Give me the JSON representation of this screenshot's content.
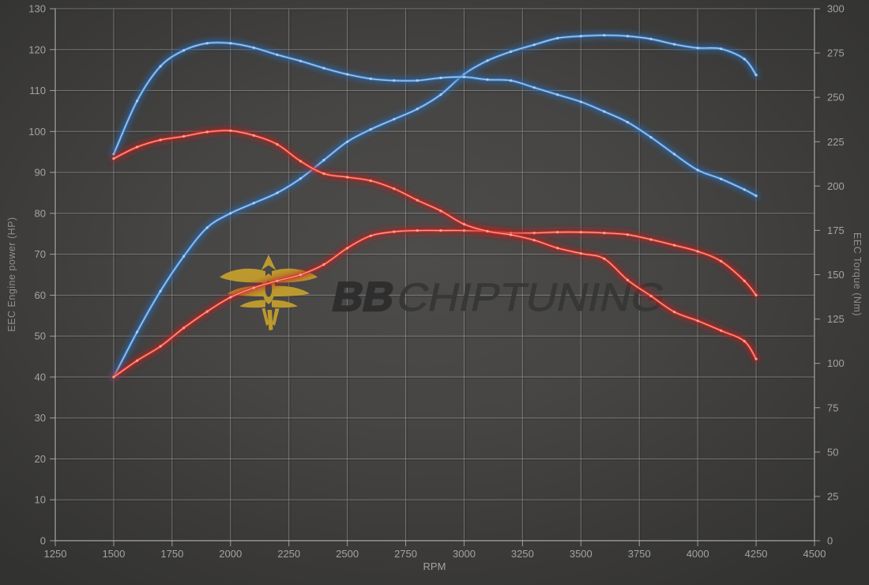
{
  "watermark": {
    "brand_bold": "BB",
    "brand_rest": "CHIPTUNING",
    "emblem": "phoenix-wings-emblem",
    "emblem_color": "#c19d2f",
    "brand_bold_color": "#2d2d2d",
    "brand_rest_color": "#373737"
  },
  "axes": {
    "x": {
      "label": "RPM",
      "min": 1250,
      "max": 4500,
      "tick_step": 250,
      "ticks": [
        1250,
        1500,
        1750,
        2000,
        2250,
        2500,
        2750,
        3000,
        3250,
        3500,
        3750,
        4000,
        4250,
        4500
      ]
    },
    "y_left": {
      "label": "EEC Engine power (HP)",
      "min": 0,
      "max": 130,
      "tick_step": 10,
      "ticks": [
        0,
        10,
        20,
        30,
        40,
        50,
        60,
        70,
        80,
        90,
        100,
        110,
        120,
        130
      ]
    },
    "y_right": {
      "label": "EEC Torque (Nm)",
      "min": 0,
      "max": 300,
      "tick_step": 25,
      "ticks": [
        0,
        25,
        50,
        75,
        100,
        125,
        150,
        175,
        200,
        225,
        250,
        275,
        300
      ]
    }
  },
  "chart_data": {
    "type": "line",
    "title": "",
    "xlabel": "RPM",
    "ylabel_left": "EEC Engine power (HP)",
    "ylabel_right": "EEC Torque (Nm)",
    "x_range": [
      1250,
      4500
    ],
    "y_left_range": [
      0,
      130
    ],
    "y_right_range": [
      0,
      300
    ],
    "grid": true,
    "legend": false,
    "x": [
      1500,
      1600,
      1700,
      1800,
      1900,
      2000,
      2100,
      2200,
      2300,
      2400,
      2500,
      2600,
      2700,
      2800,
      2900,
      3000,
      3100,
      3200,
      3300,
      3400,
      3500,
      3600,
      3700,
      3800,
      3900,
      4000,
      4100,
      4200,
      4250
    ],
    "series": [
      {
        "name": "blue-power-hp",
        "axis": "left",
        "unit": "HP",
        "color_glow": "#2a66ad",
        "color_mid": "#3f80c6",
        "color_core": "#b5d4f1",
        "values": [
          40,
          51,
          61,
          69.5,
          76.5,
          80,
          82.5,
          85,
          88.5,
          93,
          97.5,
          100.5,
          103,
          105.5,
          109,
          114,
          117.3,
          119.5,
          121.2,
          122.8,
          123.3,
          123.5,
          123.3,
          122.6,
          121.3,
          120.4,
          120.2,
          117.7,
          113.8
        ]
      },
      {
        "name": "blue-torque-nm",
        "axis": "right",
        "unit": "Nm",
        "color_glow": "#2a66ad",
        "color_mid": "#3f80c6",
        "color_core": "#b5d4f1",
        "values": [
          218,
          248,
          267.5,
          276.5,
          280.5,
          280.5,
          278,
          274,
          270.5,
          266.5,
          263,
          260.5,
          259.5,
          259.5,
          261,
          261.5,
          260,
          259.5,
          255.5,
          251.5,
          247.5,
          242,
          236,
          227.5,
          218,
          209,
          204,
          198,
          194.5
        ]
      },
      {
        "name": "red-power-hp",
        "axis": "left",
        "unit": "HP",
        "color_glow": "#b11d1d",
        "color_mid": "#d92f2a",
        "color_core": "#ffab95",
        "values": [
          40,
          44,
          47.5,
          52,
          56,
          59.5,
          61.8,
          63.5,
          65,
          67.5,
          71.5,
          74.5,
          75.5,
          75.8,
          75.8,
          75.8,
          75.6,
          75.2,
          75.2,
          75.4,
          75.4,
          75.2,
          74.8,
          73.6,
          72.2,
          70.7,
          68.3,
          63.5,
          60
        ]
      },
      {
        "name": "red-torque-nm",
        "axis": "right",
        "unit": "Nm",
        "color_glow": "#b11d1d",
        "color_mid": "#d92f2a",
        "color_core": "#ffab95",
        "values": [
          215.5,
          222,
          226,
          228,
          230.5,
          231.2,
          228.5,
          223.5,
          214,
          207,
          205,
          203,
          198.5,
          192,
          186,
          178.5,
          174.5,
          172.5,
          169.5,
          165,
          162,
          159,
          147,
          138,
          129,
          124,
          118.5,
          112.5,
          102.5
        ]
      }
    ]
  },
  "style_colors": {
    "grid_line": "#bdbdbd",
    "grid_shadow": "#262626",
    "axis_line": "#b8b8b8",
    "tick_label": "#a3a3a3",
    "axis_title": "#8f8f8f"
  }
}
